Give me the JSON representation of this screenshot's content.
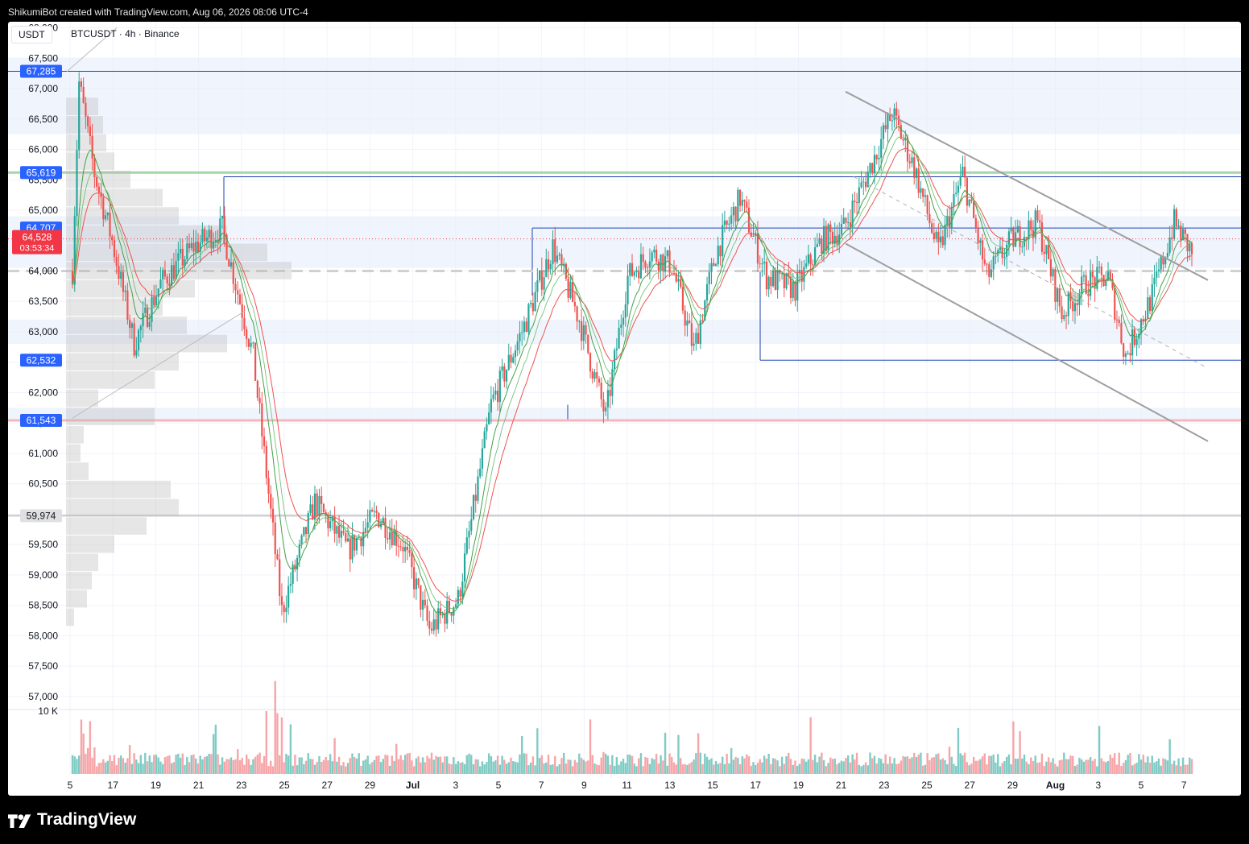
{
  "header": {
    "caption": "ShikumiBot created with TradingView.com, Aug 06, 2026 08:06 UTC-4"
  },
  "legend": {
    "currency": "USDT",
    "symbol": "BTCUSDT · 4h · Binance"
  },
  "footer": {
    "brand": "TradingView"
  },
  "colors": {
    "up": "#26a69a",
    "down": "#ef5350",
    "ema_fast": "#ef5350",
    "ema_slow": "#43a047",
    "box": "#1e40af",
    "zone": "#e3ecfb",
    "label_blue": "#2962ff",
    "label_red": "#f23645"
  },
  "chart_data": {
    "type": "candlestick",
    "symbol": "BTCUSDT",
    "interval": "4h",
    "exchange": "Binance",
    "ylim": [
      56800,
      68100
    ],
    "y_ticks": [
      68000,
      67500,
      67000,
      66500,
      66000,
      65500,
      65000,
      64500,
      64000,
      63500,
      63000,
      62500,
      62000,
      61500,
      61000,
      60500,
      60000,
      59500,
      59000,
      58500,
      58000,
      57500,
      57000
    ],
    "y_tick_labels": [
      "68,000",
      "67,500",
      "67,000",
      "66,500",
      "66,000",
      "65,500",
      "65,000",
      "64,500",
      "64,000",
      "63,500",
      "63,000",
      "62,500",
      "62,000",
      "61,500",
      "61,000",
      "60,500",
      "60,000",
      "59,500",
      "59,000",
      "58,500",
      "58,000",
      "57,500",
      "57,000"
    ],
    "x_labels": [
      "5",
      "17",
      "19",
      "21",
      "23",
      "25",
      "27",
      "29",
      "Jul",
      "3",
      "5",
      "7",
      "9",
      "11",
      "13",
      "15",
      "17",
      "19",
      "21",
      "23",
      "25",
      "27",
      "29",
      "Aug",
      "3",
      "5",
      "7"
    ],
    "current_price": {
      "value": 64528,
      "label": "64,528",
      "countdown": "03:53:34"
    },
    "price_labels": [
      {
        "value": 67285,
        "label": "67,285",
        "style": "blue"
      },
      {
        "value": 65619,
        "label": "65,619",
        "style": "blue"
      },
      {
        "value": 64707,
        "label": "64,707",
        "style": "blue"
      },
      {
        "value": 62532,
        "label": "62,532",
        "style": "blue"
      },
      {
        "value": 61543,
        "label": "61,543",
        "style": "blue"
      },
      {
        "value": 59974,
        "label": "59,974",
        "style": "grey"
      }
    ],
    "horizontal_lines": [
      {
        "value": 65619,
        "color": "#a5d6a7",
        "width": 3
      },
      {
        "value": 61543,
        "color": "#f7b6bb",
        "width": 3
      },
      {
        "value": 59974,
        "color": "#c8c8c8",
        "width": 2
      },
      {
        "value": 64000,
        "color": "#d0d0d0",
        "width": 3,
        "dash": true
      }
    ],
    "zones": [
      {
        "from": 66250,
        "to": 67500
      },
      {
        "from": 64050,
        "to": 64900
      },
      {
        "from": 62800,
        "to": 63200
      },
      {
        "from": 61560,
        "to": 61750
      }
    ],
    "boxes": [
      {
        "x_start": "Jun 22",
        "x_end": "end",
        "top": 65550,
        "bottom": 65550
      },
      {
        "x_start": "Jul 6",
        "x_end": "end",
        "top": 64707,
        "bottom": 64707
      },
      {
        "x_start": "Jul 17",
        "x_end": "end",
        "top": 62532,
        "bottom": 62532
      },
      {
        "x_start": "Jul 8",
        "x_end": "end",
        "top": 61543,
        "bottom": 61543
      }
    ],
    "channel": [
      {
        "from": [
          "Jul 21",
          66950
        ],
        "to": [
          "Aug 7",
          63850
        ]
      },
      {
        "from": [
          "Jul 21",
          64450
        ],
        "to": [
          "Aug 7",
          61200
        ]
      }
    ],
    "volume_axis": {
      "label": "10 K",
      "value": 10000
    },
    "candles_shape": "approximate: decline from 67,285 (Jun 15) to ~57,800 (Jun 30), rally to ~66,900 (Jul 21), descending channel to ~64,528 (Aug 6)"
  }
}
